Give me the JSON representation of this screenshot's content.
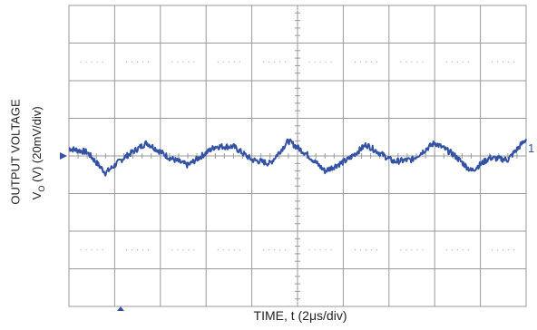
{
  "chart_data": {
    "type": "line",
    "title": "",
    "ylabel_line1": "OUTPUT VOLTAGE",
    "ylabel_line2_prefix": "V",
    "ylabel_line2_sub": "O",
    "ylabel_line2_suffix": " (V) (20mV/div)",
    "xlabel": "TIME, t (2μs/div)",
    "grid": true,
    "x_divisions": 10,
    "y_divisions": 8,
    "x_unit": "div",
    "y_unit": "div",
    "xlim": [
      0,
      10
    ],
    "ylim": [
      -4,
      4
    ],
    "channel_marker": "1",
    "trace_color": "#3452a3",
    "grid_color": "#9a9a9a",
    "series": [
      {
        "x": [
          0.0,
          0.4,
          0.8,
          1.2,
          1.7,
          2.2,
          2.6,
          3.2,
          3.6,
          4.0,
          4.4,
          4.8,
          5.2,
          5.6,
          6.1,
          6.5,
          7.1,
          7.5,
          8.0,
          8.4,
          8.8,
          9.2,
          9.6,
          10.0
        ],
        "y": [
          0.2,
          0.1,
          -0.45,
          -0.05,
          0.35,
          -0.05,
          -0.25,
          0.25,
          0.25,
          -0.1,
          -0.2,
          0.4,
          0.05,
          -0.4,
          -0.1,
          0.3,
          -0.15,
          -0.1,
          0.35,
          0.05,
          -0.4,
          -0.05,
          -0.1,
          0.45
        ]
      }
    ]
  }
}
